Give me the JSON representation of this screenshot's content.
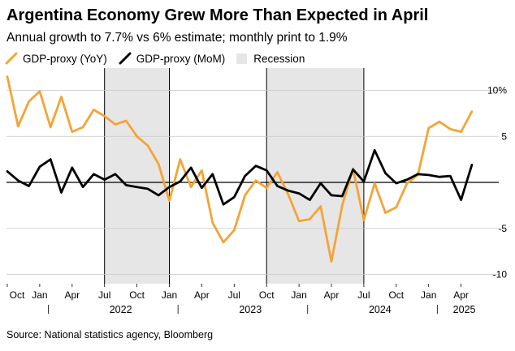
{
  "header": {
    "title": "Argentina Economy Grew More Than Expected in April",
    "subtitle": "Annual growth to 7.7% vs 6% estimate; monthly print to 1.9%"
  },
  "legend": {
    "yoy": "GDP-proxy (YoY)",
    "mom": "GDP-proxy (MoM)",
    "recession": "Recession"
  },
  "footer": {
    "source": "Source: National statistics agency, Bloomberg"
  },
  "colors": {
    "yoy": "#f4a436",
    "mom": "#000000",
    "recession": "#e6e6e6",
    "grid": "#c8c8c8",
    "zero": "#000000"
  },
  "chart_data": {
    "type": "line",
    "title": "Argentina Economy Grew More Than Expected in April",
    "xlabel": "",
    "ylabel": "",
    "ylim": [
      -10.5,
      12
    ],
    "yticks": [
      {
        "value": 10,
        "label": "10%"
      },
      {
        "value": 5,
        "label": "5"
      },
      {
        "value": 0,
        "label": ""
      },
      {
        "value": -5,
        "label": "-5"
      },
      {
        "value": -10,
        "label": "-10"
      }
    ],
    "x_start": "2021-10",
    "x_months": 44,
    "x_tick_labels": [
      {
        "index": 0,
        "label": "Oct"
      },
      {
        "index": 3,
        "label": "Jan"
      },
      {
        "index": 6,
        "label": "Apr"
      },
      {
        "index": 9,
        "label": "Jul"
      },
      {
        "index": 12,
        "label": "Oct"
      },
      {
        "index": 15,
        "label": "Jan"
      },
      {
        "index": 18,
        "label": "Apr"
      },
      {
        "index": 21,
        "label": "Jul"
      },
      {
        "index": 24,
        "label": "Oct"
      },
      {
        "index": 27,
        "label": "Jan"
      },
      {
        "index": 30,
        "label": "Apr"
      },
      {
        "index": 33,
        "label": "Jul"
      },
      {
        "index": 36,
        "label": "Oct"
      },
      {
        "index": 39,
        "label": "Jan"
      },
      {
        "index": 42,
        "label": "Apr"
      }
    ],
    "year_labels": [
      {
        "index": 10.5,
        "label": "2022"
      },
      {
        "index": 22.5,
        "label": "2023"
      },
      {
        "index": 34.5,
        "label": "2024"
      },
      {
        "index": 42.3,
        "label": "2025"
      }
    ],
    "year_separators": [
      3.8,
      15.8,
      27.8,
      39.8
    ],
    "recessions": [
      {
        "start": 9,
        "end": 15
      },
      {
        "start": 24,
        "end": 33
      }
    ],
    "series": [
      {
        "name": "GDP-proxy (YoY)",
        "color": "#f4a436",
        "values": [
          11.5,
          6.1,
          8.8,
          9.9,
          6.0,
          9.3,
          5.5,
          6.0,
          7.9,
          7.2,
          6.3,
          6.7,
          5.0,
          4.0,
          2.0,
          -2.0,
          2.5,
          -0.5,
          1.3,
          -4.4,
          -6.5,
          -5.2,
          -1.4,
          0.2,
          -0.6,
          1.1,
          -1.3,
          -4.2,
          -4.0,
          -2.6,
          -8.6,
          -2.5,
          1.5,
          -4.1,
          -0.1,
          -3.3,
          -2.7,
          -0.1,
          0.8,
          5.9,
          6.6,
          5.8,
          5.5,
          7.7
        ]
      },
      {
        "name": "GDP-proxy (MoM)",
        "color": "#000000",
        "values": [
          1.2,
          0.2,
          -0.4,
          1.7,
          2.5,
          -1.1,
          1.6,
          -0.5,
          0.9,
          0.3,
          0.9,
          -0.3,
          -0.5,
          -0.7,
          -1.4,
          -0.5,
          0.1,
          1.6,
          -0.6,
          0.9,
          -2.4,
          -1.6,
          0.7,
          1.8,
          1.3,
          -0.4,
          -0.9,
          -1.2,
          -1.9,
          -0.1,
          -1.4,
          -1.5,
          1.4,
          0.1,
          3.5,
          1.0,
          -0.1,
          0.3,
          0.9,
          0.8,
          0.6,
          0.7,
          -1.9,
          1.9
        ]
      }
    ]
  }
}
